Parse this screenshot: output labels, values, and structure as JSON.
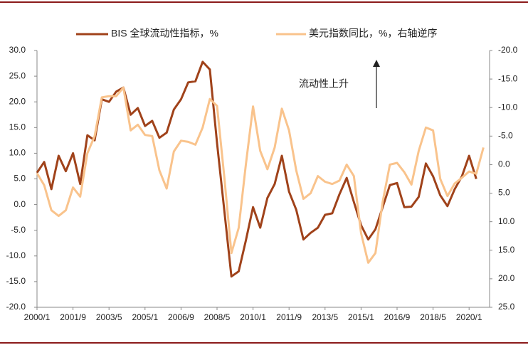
{
  "chart_data": {
    "type": "line",
    "legend_labels_note": null,
    "categories": [
      "2000/1",
      null,
      null,
      null,
      null,
      "2001/9",
      null,
      null,
      null,
      null,
      "2003/5",
      null,
      null,
      null,
      null,
      "2005/1",
      null,
      null,
      null,
      null,
      "2006/9",
      null,
      null,
      null,
      null,
      "2008/5",
      null,
      null,
      null,
      null,
      "2010/1",
      null,
      null,
      null,
      null,
      "2011/9",
      null,
      null,
      null,
      null,
      "2013/5",
      null,
      null,
      null,
      null,
      "2015/1",
      null,
      null,
      null,
      null,
      "2016/9",
      null,
      null,
      null,
      null,
      "2018/5",
      null,
      null,
      null,
      null,
      "2020/1",
      null,
      null
    ],
    "series": [
      {
        "name": "BIS 全球流动性指标，%",
        "color": "#a0421a",
        "axis": "y",
        "values": [
          6.2,
          8.3,
          3,
          9.5,
          6.5,
          10,
          4,
          13.5,
          12.5,
          20.5,
          20,
          22,
          22.8,
          17.5,
          18.8,
          15.3,
          16.3,
          13,
          14,
          18.5,
          20.5,
          23.8,
          24,
          27.8,
          26.3,
          12,
          -1,
          -14,
          -13,
          -7,
          -0.5,
          -4.5,
          1.3,
          4,
          9.5,
          2.5,
          -1,
          -6.8,
          -5.5,
          -4.5,
          -2,
          -1.7,
          2,
          5.2,
          0.5,
          -4,
          -6.8,
          -4.8,
          -0.5,
          3.8,
          4.2,
          -0.5,
          -0.4,
          1.5,
          8,
          5.5,
          1.8,
          -0.3,
          3,
          5.5,
          9.5,
          5,
          null
        ]
      },
      {
        "name": "美元指数同比，%，右轴逆序",
        "color": "#f9c38c",
        "axis": "y2",
        "values": [
          1.5,
          3.6,
          8,
          9,
          8,
          4,
          5.6,
          -2,
          -5,
          -11.8,
          -12,
          -12,
          -13.5,
          -6,
          -7,
          -5.2,
          -5,
          1,
          4.2,
          -2.3,
          -4.2,
          -4,
          -3.5,
          -6.5,
          -11.5,
          -10.3,
          2,
          15.5,
          11.1,
          0,
          -10.2,
          -2.4,
          0.8,
          -3,
          -9.8,
          -6,
          1,
          6,
          5,
          2,
          3,
          3.4,
          2.8,
          0,
          2,
          12,
          17.2,
          15.5,
          6.5,
          0,
          -0.3,
          1.3,
          3.5,
          -2.4,
          -6.5,
          -6,
          2.5,
          5.5,
          3.3,
          2.3,
          1.2,
          1.6,
          -3
        ]
      }
    ],
    "ylim": [
      -20,
      30
    ],
    "yticks": [
      {
        "value": -20,
        "label": "-20.0"
      },
      {
        "value": -15,
        "label": "-15.0"
      },
      {
        "value": -10,
        "label": "-10.0"
      },
      {
        "value": -5,
        "label": "-5.0"
      },
      {
        "value": 0,
        "label": "0.0"
      },
      {
        "value": 5,
        "label": "5.0"
      },
      {
        "value": 10,
        "label": "10.0"
      },
      {
        "value": 15,
        "label": "15.0"
      },
      {
        "value": 20,
        "label": "20.0"
      },
      {
        "value": 25,
        "label": "25.0"
      },
      {
        "value": 30,
        "label": "30.0"
      }
    ],
    "y2lim": [
      25,
      -20
    ],
    "y2_inverted": true,
    "y2ticks": [
      {
        "value": -20,
        "label": "-20.0"
      },
      {
        "value": -15,
        "label": "-15.0"
      },
      {
        "value": -10,
        "label": "-10.0"
      },
      {
        "value": -5,
        "label": "-5.0"
      },
      {
        "value": 0,
        "label": "0.0"
      },
      {
        "value": 5,
        "label": "5.0"
      },
      {
        "value": 10,
        "label": "10.0"
      },
      {
        "value": 15,
        "label": "15.0"
      },
      {
        "value": 20,
        "label": "20.0"
      },
      {
        "value": 25,
        "label": "25.0"
      }
    ],
    "annotation": "流动性上升"
  }
}
